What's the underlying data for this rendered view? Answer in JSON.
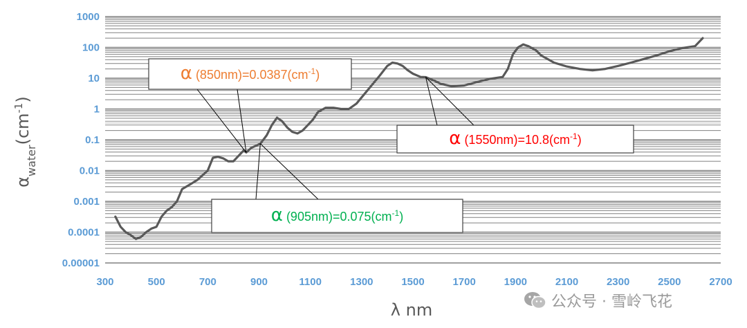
{
  "chart_data": {
    "type": "line",
    "title": "",
    "xlabel": "λ nm",
    "ylabel_main": "α",
    "ylabel_sub": "water",
    "ylabel_unit_prefix": "(cm",
    "ylabel_unit_sup": "-1",
    "ylabel_unit_suffix": ")",
    "y_scale": "log",
    "xlim": [
      300,
      2700
    ],
    "ylim": [
      1e-05,
      1000
    ],
    "x_ticks": [
      "300",
      "500",
      "700",
      "900",
      "1100",
      "1300",
      "1500",
      "1700",
      "1900",
      "2100",
      "2300",
      "2500",
      "2700"
    ],
    "y_ticks": [
      "1000",
      "100",
      "10",
      "1",
      "0.1",
      "0.01",
      "0.001",
      "0.0001",
      "0.00001"
    ],
    "grid": true,
    "line_color": "#595959",
    "grid_color": "#808080",
    "series": [
      {
        "x": [
          340,
          360,
          380,
          400,
          420,
          440,
          460,
          480,
          500,
          520,
          540,
          560,
          580,
          600,
          630,
          660,
          700,
          720,
          740,
          760,
          780,
          800,
          820,
          840,
          850,
          870,
          890,
          905,
          930,
          950,
          970,
          990,
          1010,
          1030,
          1050,
          1070,
          1090,
          1110,
          1130,
          1160,
          1190,
          1220,
          1250,
          1280,
          1310,
          1340,
          1370,
          1400,
          1420,
          1440,
          1460,
          1480,
          1500,
          1530,
          1550,
          1580,
          1610,
          1650,
          1700,
          1750,
          1800,
          1850,
          1870,
          1890,
          1910,
          1930,
          1950,
          1980,
          2000,
          2050,
          2100,
          2150,
          2200,
          2250,
          2300,
          2350,
          2400,
          2450,
          2500,
          2550,
          2600,
          2630
        ],
        "y": [
          0.00032,
          0.00015,
          0.0001,
          8e-05,
          6e-05,
          7e-05,
          0.0001,
          0.00013,
          0.00015,
          0.00032,
          0.0005,
          0.00065,
          0.001,
          0.0025,
          0.0035,
          0.005,
          0.01,
          0.026,
          0.028,
          0.025,
          0.02,
          0.02,
          0.03,
          0.045,
          0.0387,
          0.055,
          0.065,
          0.075,
          0.14,
          0.3,
          0.52,
          0.4,
          0.25,
          0.18,
          0.16,
          0.2,
          0.3,
          0.45,
          0.8,
          1.1,
          1.1,
          1.0,
          1.0,
          1.5,
          3.0,
          6.0,
          12.0,
          25.0,
          32.0,
          30.0,
          25.0,
          18.0,
          14.0,
          11.0,
          10.8,
          8.5,
          6.5,
          5.5,
          5.8,
          7.5,
          9.5,
          11.0,
          20.0,
          60.0,
          100.0,
          125.0,
          110.0,
          80.0,
          55.0,
          32.0,
          24.0,
          20.0,
          18.0,
          20.0,
          25.0,
          32.0,
          42.0,
          55.0,
          75.0,
          95.0,
          110.0,
          200.0
        ]
      }
    ],
    "annotations": [
      {
        "alpha": "α",
        "text": " (850nm)=0.0387(cm",
        "sup": "-1",
        "close": ")",
        "color": "#ed7d31",
        "point_x": 850,
        "point_y": 0.0387
      },
      {
        "alpha": "α",
        "text": " (1550nm)=10.8(cm",
        "sup": "-1",
        "close": ")",
        "color": "#ff0000",
        "point_x": 1550,
        "point_y": 10.8
      },
      {
        "alpha": "α",
        "text": " (905nm)=0.075(cm",
        "sup": "-1",
        "close": ")",
        "color": "#00b050",
        "point_x": 905,
        "point_y": 0.075
      }
    ]
  },
  "watermark": {
    "text": "公众号 · 雪岭飞花",
    "icon": "wechat-icon"
  }
}
